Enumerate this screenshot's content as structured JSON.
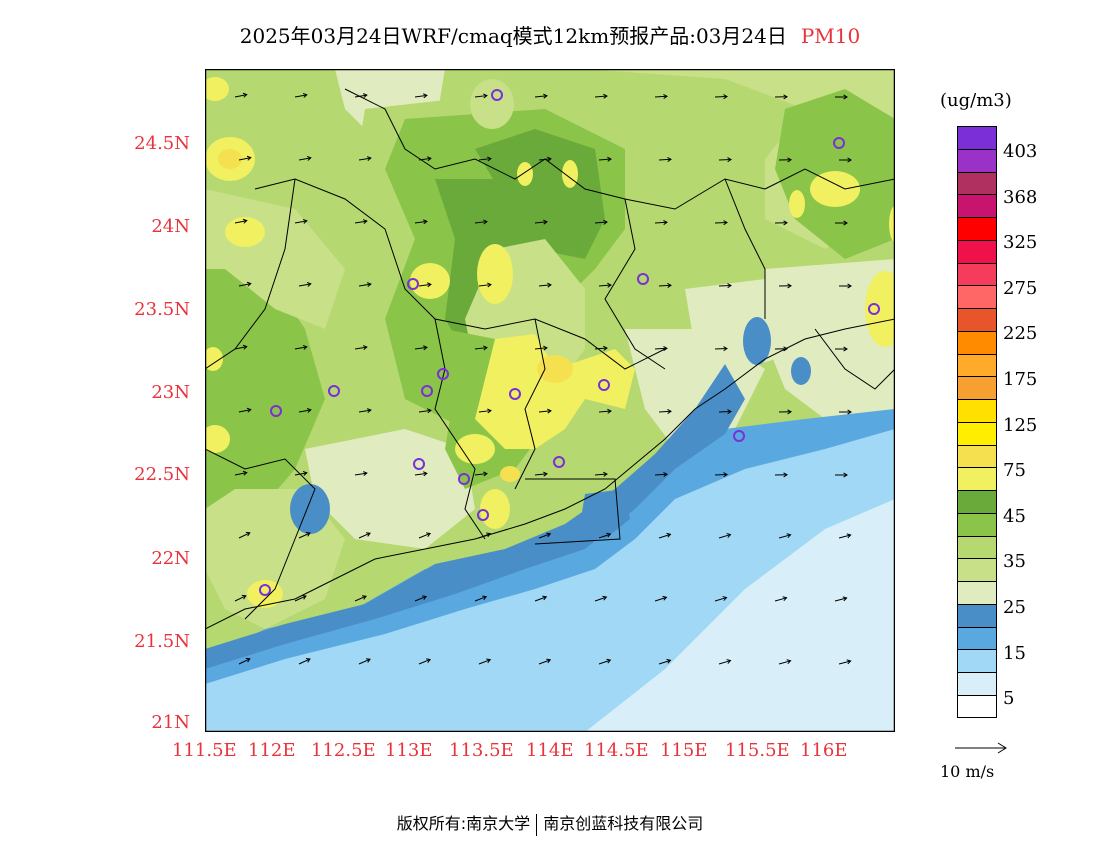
{
  "title": {
    "text": "2025年03月24日WRF/cmaq模式12km预报产品:03月24日",
    "variable": "PM10"
  },
  "map": {
    "lat_labels": [
      "24.5N",
      "24N",
      "23.5N",
      "23N",
      "22.5N",
      "22N",
      "21.5N",
      "21N"
    ],
    "lon_labels": [
      "111.5E",
      "112E",
      "112.5E",
      "113E",
      "113.5E",
      "114E",
      "114.5E",
      "115E",
      "115.5E",
      "116E"
    ]
  },
  "colorbar": {
    "unit": "(ug/m3)",
    "colors": [
      "#7b2fd6",
      "#9a32c8",
      "#b03060",
      "#c8146e",
      "#ff0000",
      "#f0104a",
      "#f53c5a",
      "#ff6666",
      "#e8552a",
      "#ff8c00",
      "#ffaa2a",
      "#f5a030",
      "#ffe000",
      "#ffee00",
      "#f5e050",
      "#f0f060",
      "#6aaa3a",
      "#8ac448",
      "#b5d870",
      "#c8e088",
      "#e0ebc0",
      "#4a8ec8",
      "#5aa8e0",
      "#a0d8f5",
      "#d8eef8",
      "#ffffff"
    ],
    "labels": [
      "403",
      "368",
      "325",
      "275",
      "225",
      "175",
      "125",
      "75",
      "45",
      "35",
      "25",
      "15",
      "5"
    ]
  },
  "wind_reference": "10  m/s",
  "footer": {
    "copyright": "版权所有:南京大学",
    "company": "南京创蓝科技有限公司"
  }
}
